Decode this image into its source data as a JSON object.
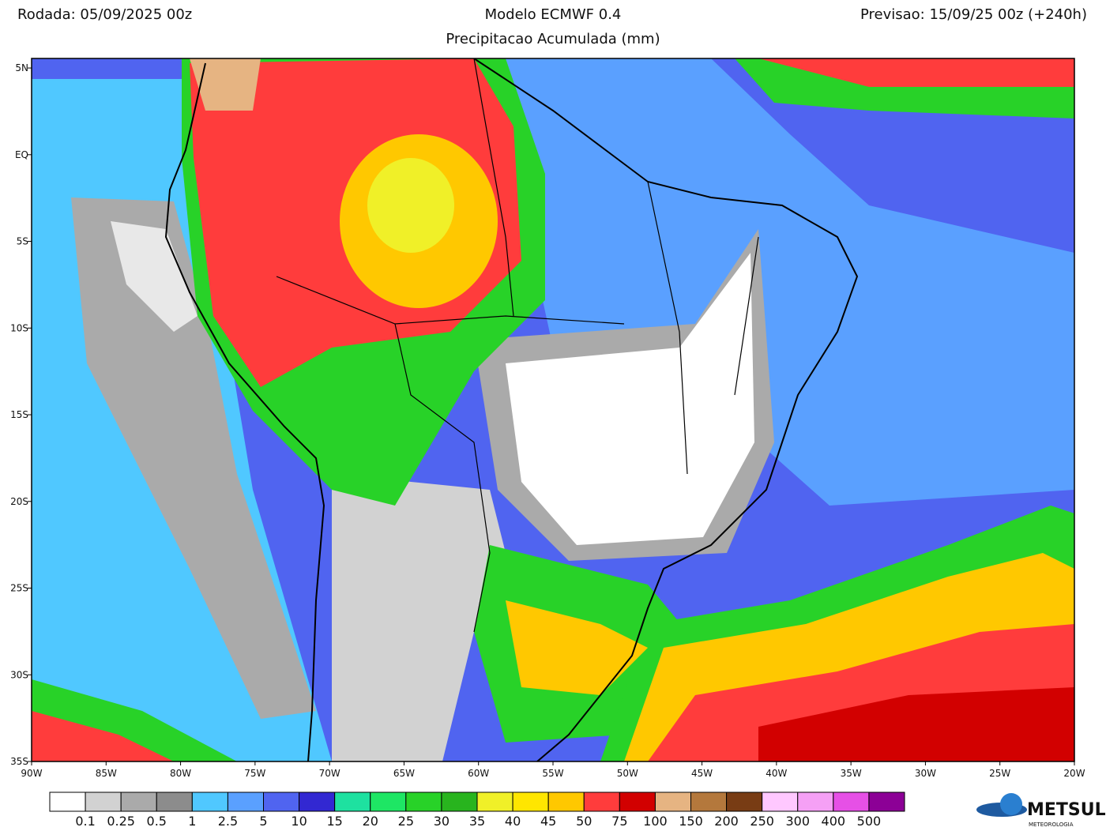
{
  "header": {
    "run": "Rodada: 05/09/2025 00z",
    "model": "Modelo ECMWF 0.4",
    "forecast": "Previsao: 15/09/25 00z (+240h)",
    "subtitle": "Precipitacao Acumulada (mm)"
  },
  "map": {
    "xlim": [
      -90,
      -20
    ],
    "ylim": [
      5.55,
      -35
    ],
    "xticks": [
      {
        "value": -90,
        "label": "90W"
      },
      {
        "value": -85,
        "label": "85W"
      },
      {
        "value": -80,
        "label": "80W"
      },
      {
        "value": -75,
        "label": "75W"
      },
      {
        "value": -70,
        "label": "70W"
      },
      {
        "value": -65,
        "label": "65W"
      },
      {
        "value": -60,
        "label": "60W"
      },
      {
        "value": -55,
        "label": "55W"
      },
      {
        "value": -50,
        "label": "50W"
      },
      {
        "value": -45,
        "label": "45W"
      },
      {
        "value": -40,
        "label": "40W"
      },
      {
        "value": -35,
        "label": "35W"
      },
      {
        "value": -30,
        "label": "30W"
      },
      {
        "value": -25,
        "label": "25W"
      },
      {
        "value": -20,
        "label": "20W"
      }
    ],
    "yticks": [
      {
        "value": 5,
        "label": "5N"
      },
      {
        "value": 0,
        "label": "EQ"
      },
      {
        "value": -5,
        "label": "5S"
      },
      {
        "value": -10,
        "label": "10S"
      },
      {
        "value": -15,
        "label": "15S"
      },
      {
        "value": -20,
        "label": "20S"
      },
      {
        "value": -25,
        "label": "25S"
      },
      {
        "value": -30,
        "label": "30S"
      },
      {
        "value": -35,
        "label": "35S"
      }
    ]
  },
  "colorbar": {
    "colors": [
      "#ffffff",
      "#d2d2d2",
      "#aaaaaa",
      "#8c8c8c",
      "#50c8ff",
      "#5aa0ff",
      "#5064f0",
      "#3228d2",
      "#1ee1a0",
      "#1ee664",
      "#28d228",
      "#28b41e",
      "#f0f028",
      "#ffe600",
      "#ffc800",
      "#ff3c3c",
      "#d20000",
      "#e6b482",
      "#b4783c",
      "#783c14",
      "#ffc8ff",
      "#f5a0f5",
      "#e650e6",
      "#8c0096"
    ],
    "ticks": [
      0.1,
      0.25,
      0.5,
      1,
      2.5,
      5,
      10,
      15,
      20,
      25,
      30,
      35,
      40,
      45,
      50,
      75,
      100,
      150,
      200,
      250,
      300,
      400,
      500
    ]
  },
  "logo": {
    "name": "METSUL",
    "tagline": "METEOROLOGIA"
  }
}
